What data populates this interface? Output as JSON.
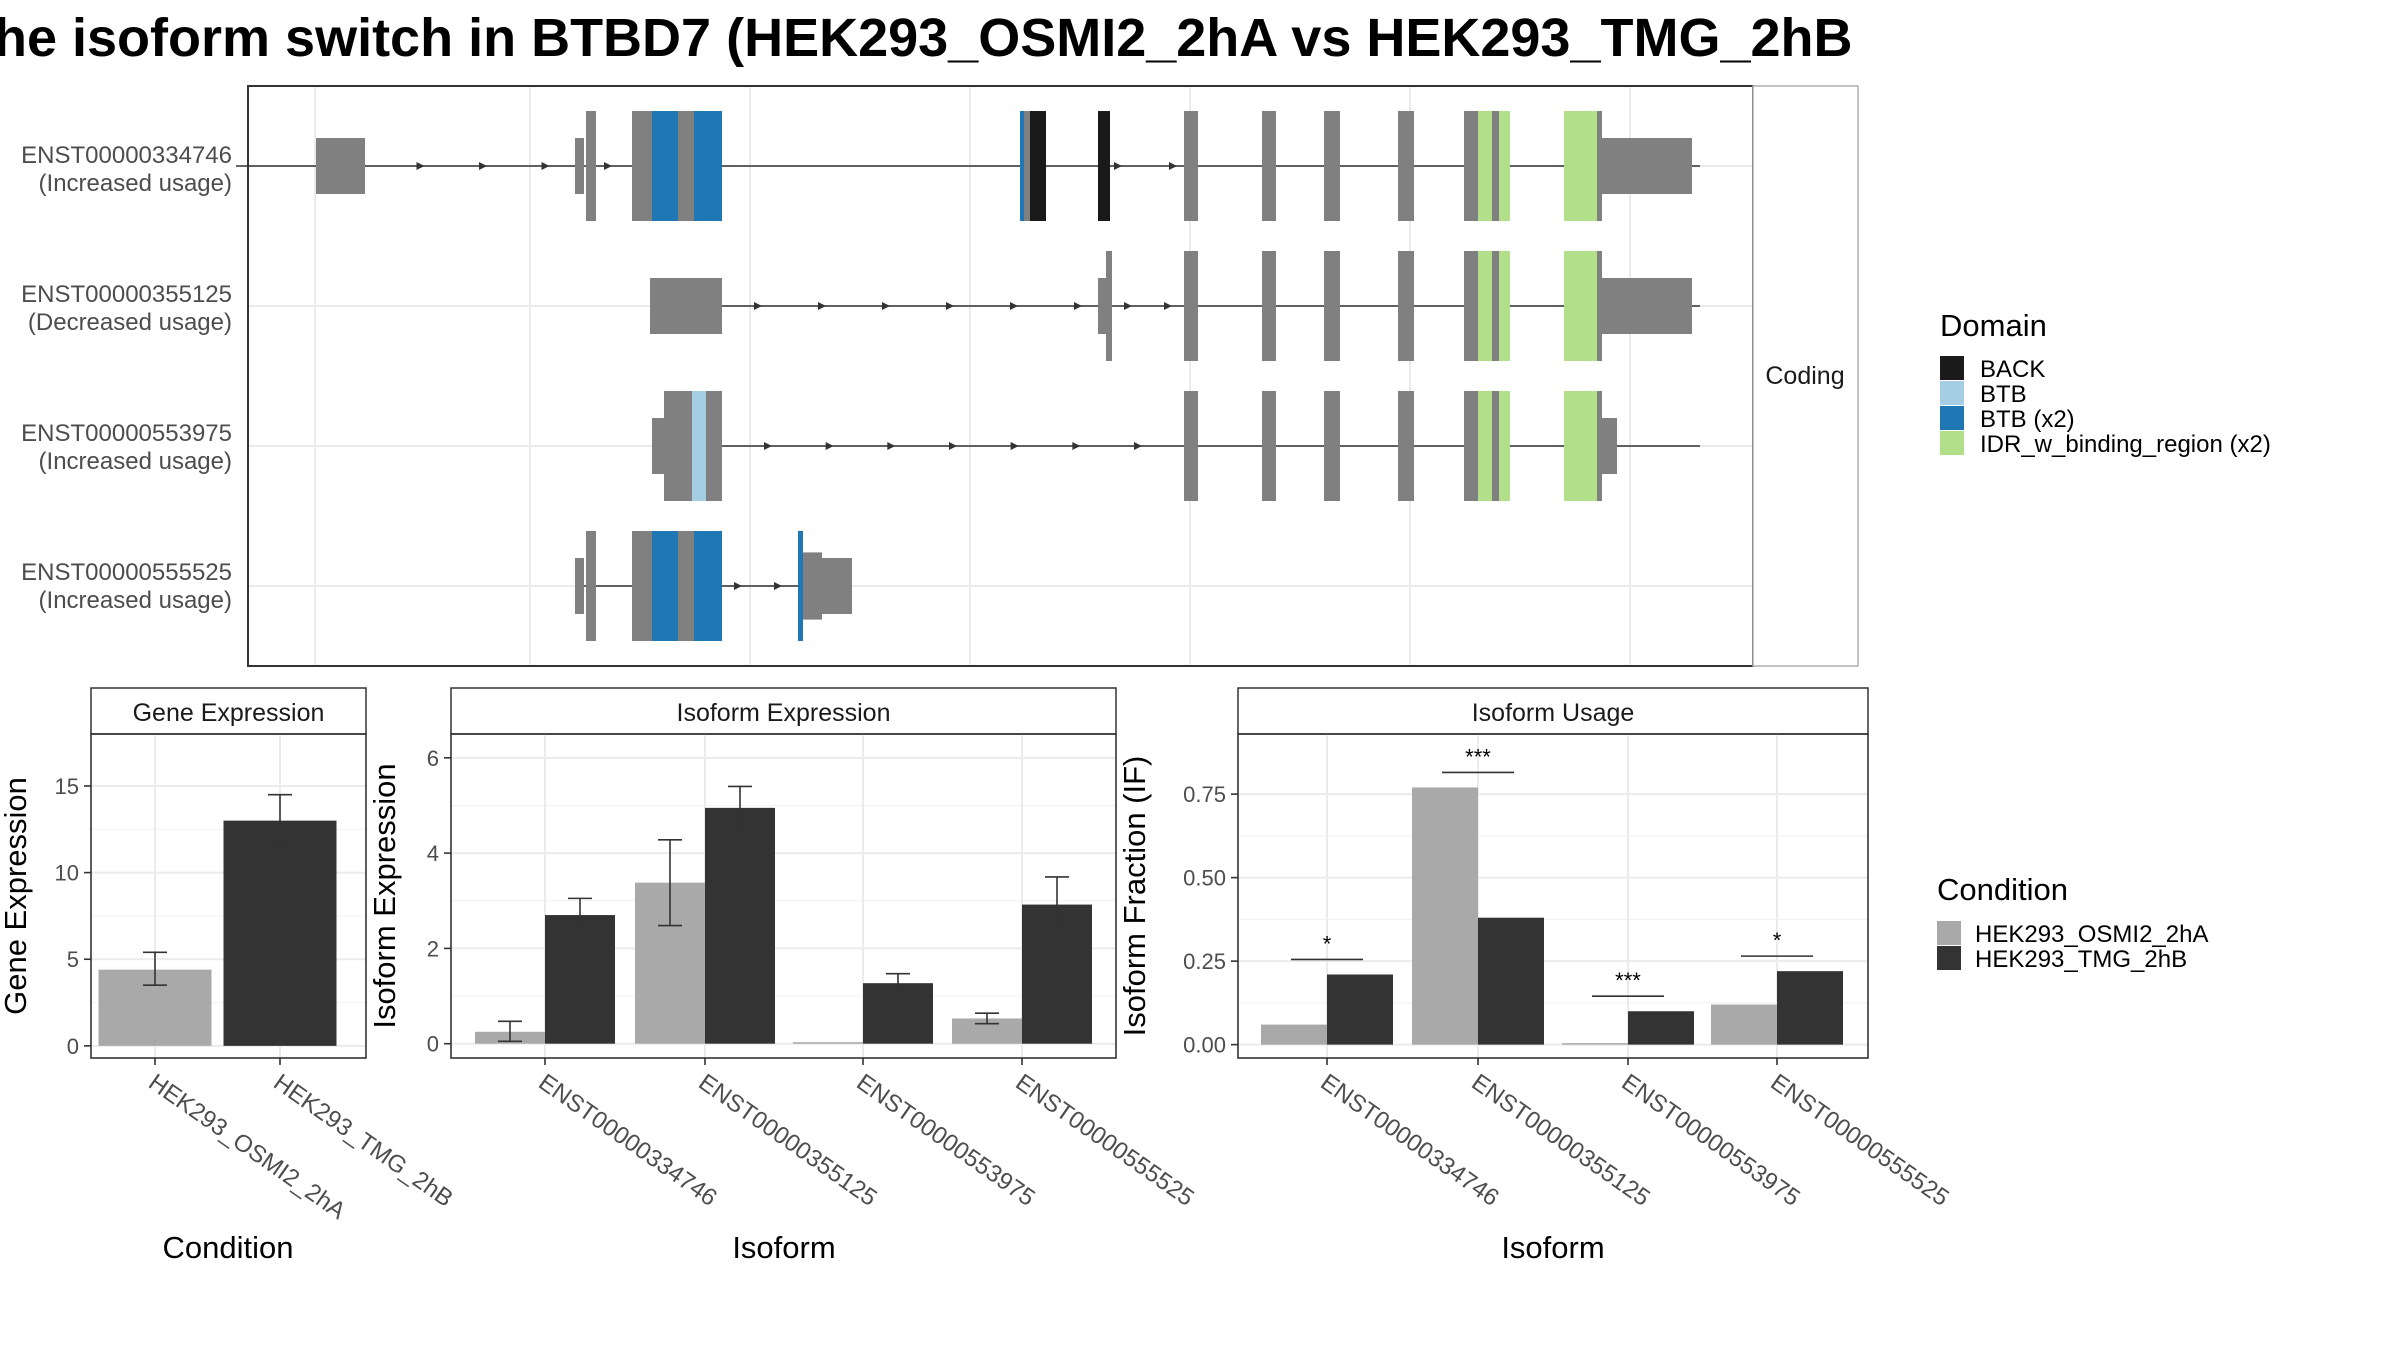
{
  "title": "he isoform switch in BTBD7 (HEK293_OSMI2_2hA vs HEK293_TMG_2hB",
  "colors": {
    "exon": "#808080",
    "panel_border": "#333333",
    "grid": "#ebebeb",
    "strip_bg": "#ffffff",
    "BACK": "#1a1a1a",
    "BTB": "#a6cee3",
    "BTB (x2)": "#1f78b4",
    "IDR_w_binding_region (x2)": "#b2df8a",
    "HEK293_OSMI2_2hA": "#a9a9a9",
    "HEK293_TMG_2hB": "#333333"
  },
  "structure": {
    "strip_label": "Coding",
    "isoforms": [
      {
        "id": "ENST00000334746",
        "note": "(Increased usage)"
      },
      {
        "id": "ENST00000355125",
        "note": "(Decreased usage)"
      },
      {
        "id": "ENST00000553975",
        "note": "(Increased usage)"
      },
      {
        "id": "ENST00000555525",
        "note": "(Increased usage)"
      }
    ]
  },
  "legend_domain": {
    "title": "Domain",
    "items": [
      "BACK",
      "BTB",
      "BTB (x2)",
      "IDR_w_binding_region (x2)"
    ]
  },
  "legend_condition": {
    "title": "Condition",
    "items": [
      "HEK293_OSMI2_2hA",
      "HEK293_TMG_2hB"
    ]
  },
  "chart_data": [
    {
      "type": "bar",
      "title": "Gene Expression",
      "xlabel": "Condition",
      "ylabel": "Gene Expression",
      "categories": [
        "HEK293_OSMI2_2hA",
        "HEK293_TMG_2hB"
      ],
      "values": [
        4.4,
        13.0
      ],
      "errors": [
        [
          3.5,
          5.4
        ],
        [
          11.6,
          14.5
        ]
      ],
      "ylim": [
        -0.7,
        18.0
      ],
      "yticks": [
        0,
        5,
        10,
        15
      ],
      "ytick_labels": [
        "0",
        "5",
        "10",
        "15"
      ],
      "grid": true
    },
    {
      "type": "bar",
      "title": "Isoform Expression",
      "xlabel": "Isoform",
      "ylabel": "Isoform Expression",
      "categories": [
        "ENST00000334746",
        "ENST00000355125",
        "ENST00000553975",
        "ENST00000555525"
      ],
      "series": [
        {
          "name": "HEK293_OSMI2_2hA",
          "values": [
            0.25,
            3.38,
            0.0,
            0.53
          ],
          "errors": [
            [
              0.05,
              0.47
            ],
            [
              2.48,
              4.28
            ],
            [
              0.0,
              0.0
            ],
            [
              0.42,
              0.64
            ]
          ]
        },
        {
          "name": "HEK293_TMG_2hB",
          "values": [
            2.7,
            4.95,
            1.27,
            2.92
          ],
          "errors": [
            [
              2.35,
              3.05
            ],
            [
              4.5,
              5.4
            ],
            [
              1.07,
              1.47
            ],
            [
              2.34,
              3.5
            ]
          ]
        }
      ],
      "ylim": [
        -0.3,
        6.5
      ],
      "yticks": [
        0,
        2,
        4,
        6
      ],
      "ytick_labels": [
        "0",
        "2",
        "4",
        "6"
      ],
      "grid": true
    },
    {
      "type": "bar",
      "title": "Isoform Usage",
      "xlabel": "Isoform",
      "ylabel": "Isoform Fraction (IF)",
      "categories": [
        "ENST00000334746",
        "ENST00000355125",
        "ENST00000553975",
        "ENST00000555525"
      ],
      "series": [
        {
          "name": "HEK293_OSMI2_2hA",
          "values": [
            0.06,
            0.77,
            0.0,
            0.12
          ]
        },
        {
          "name": "HEK293_TMG_2hB",
          "values": [
            0.21,
            0.38,
            0.1,
            0.22
          ]
        }
      ],
      "significance": [
        "*",
        "***",
        "***",
        "*"
      ],
      "ylim": [
        -0.04,
        0.93
      ],
      "yticks": [
        0,
        0.25,
        0.5,
        0.75
      ],
      "ytick_labels": [
        "0.00",
        "0.25",
        "0.50",
        "0.75"
      ],
      "grid": true
    }
  ]
}
